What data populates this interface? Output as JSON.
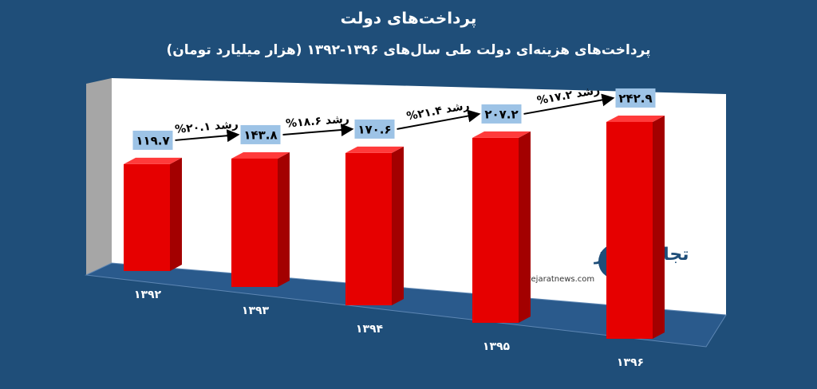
{
  "chart_data": {
    "type": "bar3d",
    "title": "پرداخت‌های دولت",
    "subtitle": "پرداخت‌های هزینه‌ای دولت طی سال‌های ۱۳۹۶-۱۳۹۲ (هزار میلیارد تومان)",
    "categories": [
      "۱۳۹۲",
      "۱۳۹۳",
      "۱۳۹۴",
      "۱۳۹۵",
      "۱۳۹۶"
    ],
    "values": [
      119.7,
      143.8,
      170.6,
      207.2,
      242.9
    ],
    "value_labels": [
      "۱۱۹.۷",
      "۱۴۳.۸",
      "۱۷۰.۶",
      "۲۰۷.۲",
      "۲۴۲.۹"
    ],
    "color": "#e60000",
    "annotations": [
      "رشد ۲۰.۱%",
      "رشد ۱۸.۶%",
      "رشد ۲۱.۴%",
      "رشد ۱۷.۲%"
    ],
    "watermark": "تجارت نیوز",
    "watermark_url": "www.tejaratnews.com"
  }
}
